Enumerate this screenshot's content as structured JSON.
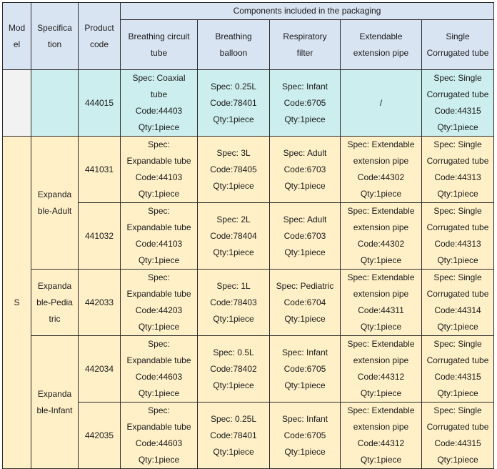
{
  "headers": {
    "model": "Mod\nel",
    "specification": "Specifica\ntion",
    "product_code": "Product\ncode",
    "components_group": "Components included in the packaging",
    "breathing_circuit_tube": "Breathing circuit\ntube",
    "breathing_balloon": "Breathing\nballoon",
    "respiratory_filter": "Respiratory\nfilter",
    "extendable_extension_pipe": "Extendable\nextension pipe",
    "single_corrugated_tube": "Single\nCorrugated tube"
  },
  "row0": {
    "model": "",
    "specification": "",
    "code": "444015",
    "tube": "Spec: Coaxial\ntube\nCode:44403\nQty:1piece",
    "balloon": "Spec: 0.25L\nCode:78401\nQty:1piece",
    "filter": "Spec: Infant\nCode:6705\nQty:1piece",
    "extension": "/",
    "corrugated": "Spec: Single\nCorrugated tube\nCode:44315\nQty:1piece"
  },
  "model_s": "S",
  "groups": {
    "adult": "Expanda\nble-Adult",
    "pediatric": "Expanda\nble-Pedia\ntric",
    "infant": "Expanda\nble-Infant"
  },
  "rows": [
    {
      "code": "441031",
      "tube": "Spec:\nExpandable tube\nCode:44103\nQty:1piece",
      "balloon": "Spec: 3L\nCode:78405\nQty:1piece",
      "filter": "Spec: Adult\nCode:6703\nQty:1piece",
      "extension": "Spec: Extendable\nextension pipe\nCode:44302\nQty:1piece",
      "corrugated": "Spec: Single\nCorrugated tube\nCode:44313\nQty:1piece"
    },
    {
      "code": "441032",
      "tube": "Spec:\nExpandable tube\nCode:44103\nQty:1piece",
      "balloon": "Spec: 2L\nCode:78404\nQty:1piece",
      "filter": "Spec: Adult\nCode:6703\nQty:1piece",
      "extension": "Spec: Extendable\nextension pipe\nCode:44302\nQty:1piece",
      "corrugated": "Spec: Single\nCorrugated tube\nCode:44313\nQty:1piece"
    },
    {
      "code": "442033",
      "tube": "Spec:\nExpandable tube\nCode:44203\nQty:1piece",
      "balloon": "Spec: 1L\nCode:78403\nQty:1piece",
      "filter": "Spec: Pediatric\nCode:6704\nQty:1piece",
      "extension": "Spec: Extendable\nextension pipe\nCode:44311\nQty:1piece",
      "corrugated": "Spec: Single\nCorrugated tube\nCode:44314\nQty:1piece"
    },
    {
      "code": "442034",
      "tube": "Spec:\nExpandable tube\nCode:44603\nQty:1piece",
      "balloon": "Spec: 0.5L\nCode:78402\nQty:1piece",
      "filter": "Spec: Infant\nCode:6705\nQty:1piece",
      "extension": "Spec: Extendable\nextension pipe\nCode:44312\nQty:1piece",
      "corrugated": "Spec: Single\nCorrugated tube\nCode:44315\nQty:1piece"
    },
    {
      "code": "442035",
      "tube": "Spec:\nExpandable tube\nCode:44603\nQty:1piece",
      "balloon": "Spec: 0.25L\nCode:78401\nQty:1piece",
      "filter": "Spec: Infant\nCode:6705\nQty:1piece",
      "extension": "Spec: Extendable\nextension pipe\nCode:44312\nQty:1piece",
      "corrugated": "Spec: Single\nCorrugated tube\nCode:44315\nQty:1piece"
    }
  ]
}
